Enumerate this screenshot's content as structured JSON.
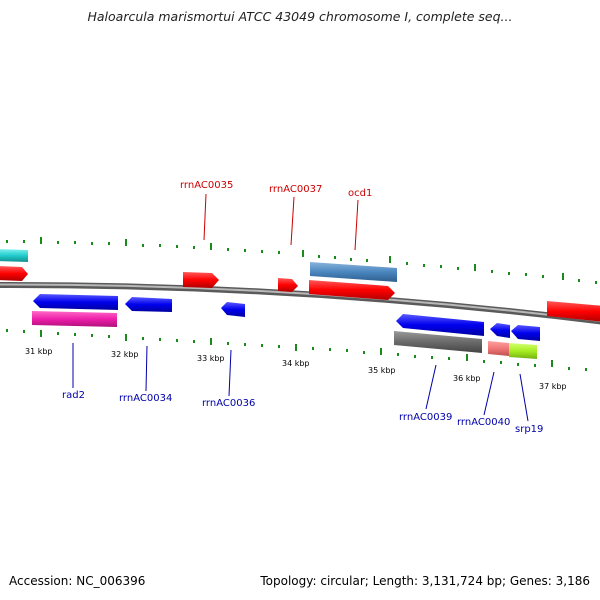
{
  "title": "Haloarcula marismortui ATCC 43049 chromosome I, complete seq...",
  "footer": {
    "accession": "Accession: NC_006396",
    "stats": "Topology: circular; Length: 3,131,724 bp; Genes: 3,186"
  },
  "colors": {
    "forward_cds": "#ff0000",
    "reverse_cds": "#0000ff",
    "forward_label": "#cc0000",
    "reverse_label": "#0000aa",
    "backbone": "#888888",
    "tick": "#1a8a1a"
  },
  "kbp_labels": [
    "31 kbp",
    "32 kbp",
    "33 kbp",
    "34 kbp",
    "35 kbp",
    "36 kbp",
    "37 kbp"
  ],
  "forward_labels": [
    "rrnAC0035",
    "rrnAC0037",
    "ocd1"
  ],
  "reverse_labels": [
    "rad2",
    "rrnAC0034",
    "rrnAC0036",
    "rrnAC0039",
    "rrnAC0040",
    "srp19"
  ]
}
